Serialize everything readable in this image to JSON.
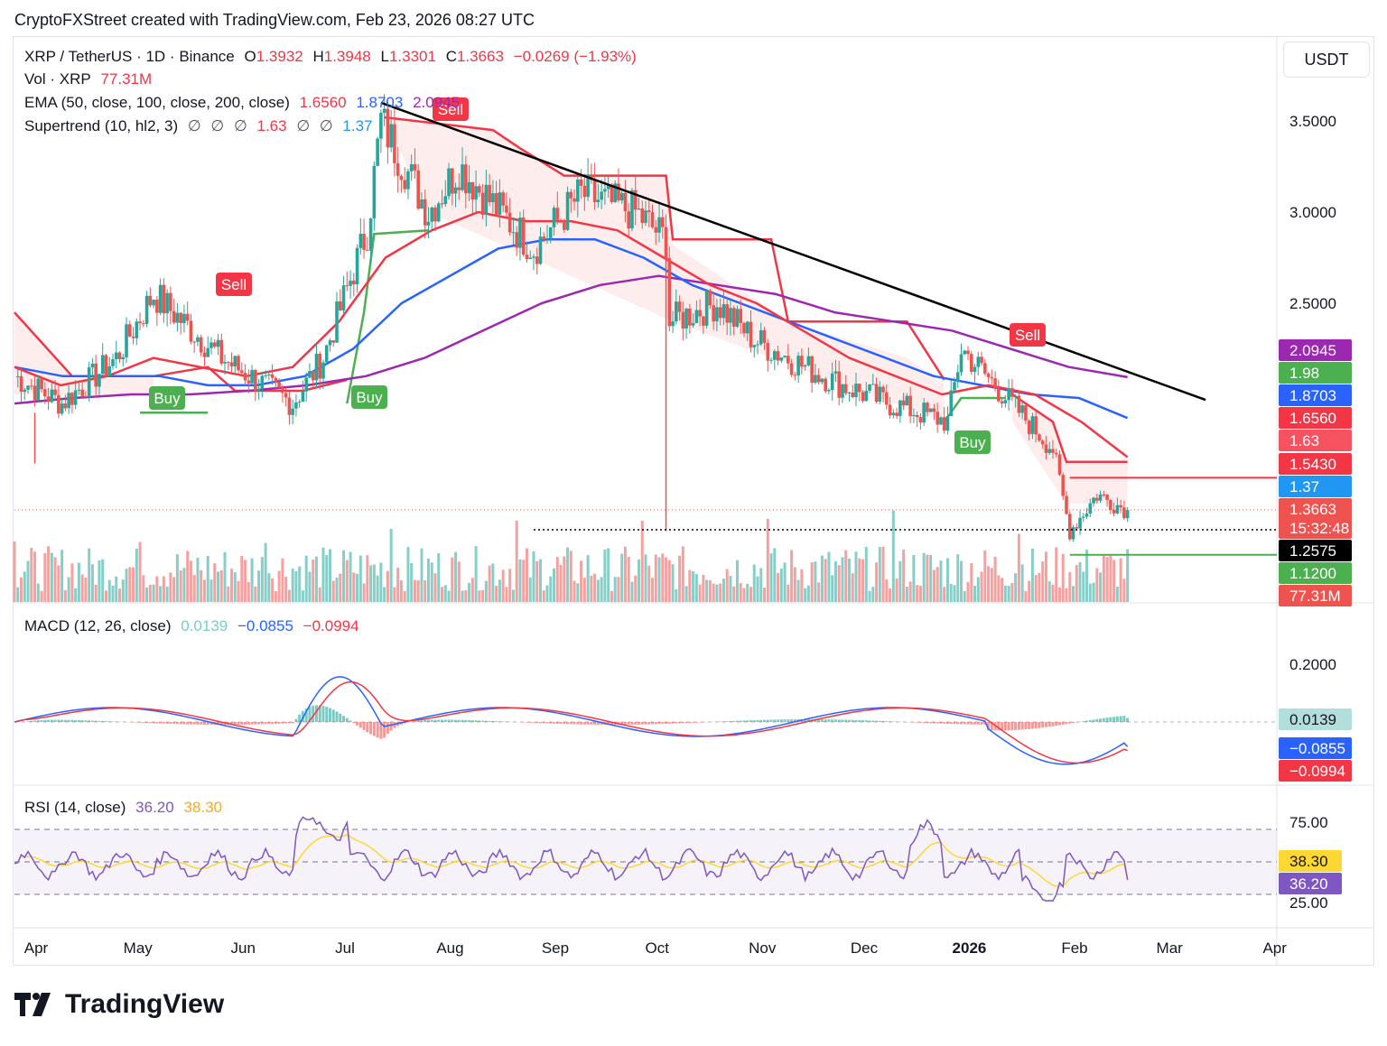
{
  "header": {
    "credit": "CryptoFXStreet created with TradingView.com, Feb 23, 2026 08:27 UTC"
  },
  "currency_button": "USDT",
  "legend": {
    "symbol": "XRP / TetherUS · 1D · Binance",
    "o_label": "O",
    "o": "1.3932",
    "h_label": "H",
    "h": "1.3948",
    "l_label": "L",
    "l": "1.3301",
    "c_label": "C",
    "c": "1.3663",
    "change": "−0.0269 (−1.93%)",
    "vol_label": "Vol · XRP",
    "vol": "77.31M",
    "ema_label": "EMA (50, close, 100, close, 200, close)",
    "ema50": "1.6560",
    "ema100": "1.8703",
    "ema200": "2.0945",
    "st_label": "Supertrend (10, hl2, 3)",
    "st_null": "∅",
    "st_down": "1.63",
    "st_up": "1.37",
    "macd_label": "MACD (12, 26, close)",
    "macd_hist": "0.0139",
    "macd_line": "−0.0855",
    "macd_signal": "−0.0994",
    "rsi_label": "RSI (14, close)",
    "rsi": "36.20",
    "rsi_ma": "38.30"
  },
  "colors": {
    "up": "#26a69a",
    "down": "#ef5350",
    "ema50": "#f23645",
    "ema100": "#2962ff",
    "ema200": "#9c27b0",
    "st_up": "#4caf50",
    "st_down": "#f23645",
    "macd": "#2962ff",
    "signal": "#f23645",
    "rsi": "#7e57c2",
    "rsi_ma": "#fdd835"
  },
  "price_axis_ticks": [
    "3.5000",
    "3.0000",
    "2.5000"
  ],
  "price_tags": [
    {
      "text": "2.0945",
      "bg": "#9c27b0",
      "fg": "#ffffff"
    },
    {
      "text": "1.98",
      "bg": "#4caf50",
      "fg": "#ffffff"
    },
    {
      "text": "1.8703",
      "bg": "#2962ff",
      "fg": "#ffffff"
    },
    {
      "text": "1.6560",
      "bg": "#f23645",
      "fg": "#ffffff"
    },
    {
      "text": "1.63",
      "bg": "#f7525f",
      "fg": "#ffffff"
    },
    {
      "text": "1.5430",
      "bg": "#f23645",
      "fg": "#ffffff"
    },
    {
      "text": "1.37",
      "bg": "#2196f3",
      "fg": "#ffffff"
    },
    {
      "text": "1.3663",
      "bg": "#ef5350",
      "fg": "#ffffff"
    },
    {
      "text": "15:32:48",
      "bg": "#ef5350",
      "fg": "#ffffff"
    },
    {
      "text": "1.2575",
      "bg": "#000000",
      "fg": "#ffffff"
    },
    {
      "text": "1.1200",
      "bg": "#4caf50",
      "fg": "#ffffff"
    },
    {
      "text": "77.31M",
      "bg": "#ef5350",
      "fg": "#ffffff"
    }
  ],
  "macd_axis_ticks": [
    "0.2000"
  ],
  "macd_tags": [
    {
      "text": "0.0139",
      "bg": "#b2dfdb",
      "fg": "#131722"
    },
    {
      "text": "−0.0855",
      "bg": "#2962ff",
      "fg": "#ffffff"
    },
    {
      "text": "−0.0994",
      "bg": "#f23645",
      "fg": "#ffffff"
    }
  ],
  "rsi_axis_ticks": [
    "75.00",
    "25.00"
  ],
  "rsi_tags": [
    {
      "text": "38.30",
      "bg": "#fdd835",
      "fg": "#131722"
    },
    {
      "text": "36.20",
      "bg": "#7e57c2",
      "fg": "#ffffff"
    }
  ],
  "time_axis": [
    "Apr",
    "May",
    "Jun",
    "Jul",
    "Aug",
    "Sep",
    "Oct",
    "Nov",
    "Dec",
    "2026",
    "Feb",
    "Mar",
    "Apr"
  ],
  "signals": [
    {
      "label": "Sell",
      "type": "sell"
    },
    {
      "label": "Buy",
      "type": "buy"
    },
    {
      "label": "Buy",
      "type": "buy"
    },
    {
      "label": "Sell",
      "type": "sell"
    },
    {
      "label": "Buy",
      "type": "buy"
    },
    {
      "label": "Sell",
      "type": "sell"
    }
  ],
  "logo_text": "TradingView",
  "chart_data": {
    "type": "line",
    "title": "XRP / TetherUS · 1D · Binance",
    "x_range": [
      "2025-04-01",
      "2026-02-23"
    ],
    "ylim": [
      1.0,
      3.7
    ],
    "close_series_approx": {
      "x": [
        "2025-04-01",
        "2025-04-15",
        "2025-05-01",
        "2025-05-12",
        "2025-06-01",
        "2025-06-22",
        "2025-07-01",
        "2025-07-14",
        "2025-07-18",
        "2025-08-01",
        "2025-08-10",
        "2025-09-01",
        "2025-09-15",
        "2025-10-01",
        "2025-10-10",
        "2025-10-11",
        "2025-10-25",
        "2025-11-05",
        "2025-11-20",
        "2025-12-01",
        "2025-12-15",
        "2026-01-01",
        "2026-01-05",
        "2026-01-15",
        "2026-02-01",
        "2026-02-06",
        "2026-02-14",
        "2026-02-23"
      ],
      "values": [
        2.1,
        1.95,
        2.2,
        2.55,
        2.2,
        1.95,
        2.2,
        2.9,
        3.5,
        3.0,
        3.25,
        2.8,
        3.1,
        3.0,
        2.85,
        2.4,
        2.5,
        2.3,
        2.15,
        2.05,
        1.95,
        1.85,
        2.25,
        2.05,
        1.7,
        1.25,
        1.45,
        1.3663
      ]
    },
    "ema50_approx": [
      2.15,
      2.05,
      2.1,
      2.2,
      2.15,
      2.1,
      2.15,
      2.4,
      2.75,
      2.9,
      3.0,
      2.95,
      2.95,
      2.9,
      2.75,
      2.6,
      2.5,
      2.35,
      2.2,
      2.1,
      2.0,
      2.05,
      2.0,
      1.85,
      1.656
    ],
    "ema100_approx": [
      2.15,
      2.1,
      2.1,
      2.1,
      2.05,
      2.05,
      2.1,
      2.25,
      2.5,
      2.65,
      2.8,
      2.85,
      2.85,
      2.75,
      2.6,
      2.5,
      2.4,
      2.3,
      2.2,
      2.1,
      2.05,
      2.0,
      1.98,
      1.8703
    ],
    "ema200_approx": [
      1.95,
      1.98,
      2.0,
      2.0,
      2.02,
      2.05,
      2.1,
      2.2,
      2.35,
      2.5,
      2.6,
      2.65,
      2.6,
      2.55,
      2.45,
      2.4,
      2.35,
      2.25,
      2.15,
      2.0945
    ],
    "trendline": {
      "from": [
        "2025-07-18",
        3.6
      ],
      "to": [
        "2026-03-18",
        1.97
      ]
    },
    "levels": {
      "resistance": 1.543,
      "current": 1.3663,
      "support_dotted": 1.2575,
      "support": 1.12
    },
    "indicators": {
      "ema": {
        "ema50": 1.656,
        "ema100": 1.8703,
        "ema200": 2.0945
      },
      "supertrend": {
        "down": 1.63,
        "up": 1.37
      },
      "macd": {
        "histogram": 0.0139,
        "macd": -0.0855,
        "signal": -0.0994
      },
      "rsi": {
        "rsi": 36.2,
        "ma": 38.3,
        "bands": [
          75,
          25
        ]
      }
    },
    "volume_last": "77.31M"
  }
}
